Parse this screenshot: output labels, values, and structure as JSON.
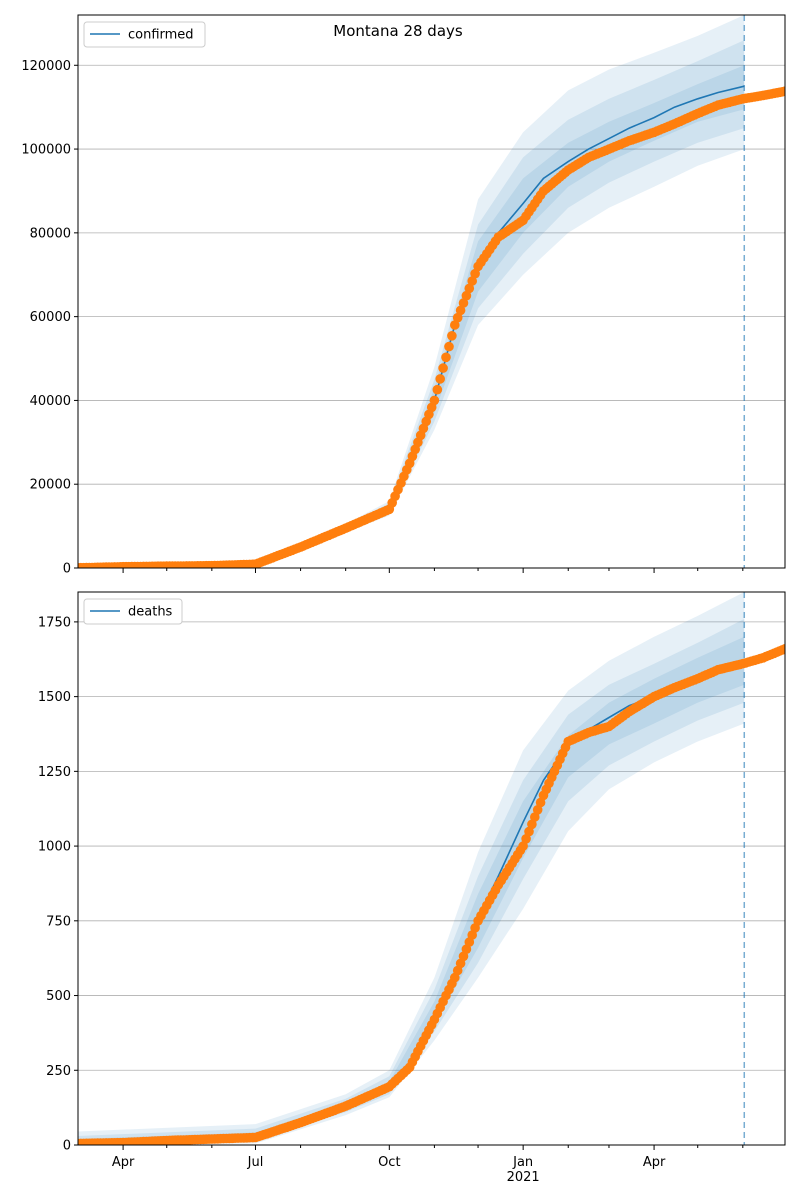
{
  "chart_data": [
    {
      "type": "line",
      "title": "Montana 28 days",
      "xlabel": "",
      "ylabel": "",
      "ylim": [
        0,
        132000
      ],
      "xlim": [
        "2020-03-01",
        "2021-06-30"
      ],
      "yticks": [
        0,
        20000,
        40000,
        60000,
        80000,
        100000,
        120000
      ],
      "ytick_labels": [
        "0",
        "20000",
        "40000",
        "60000",
        "80000",
        "100000",
        "120000"
      ],
      "grid": "y",
      "legend_position": "top-left",
      "forecast_start": "2021-06-02",
      "series": [
        {
          "name": "confirmed",
          "type": "line",
          "color": "#1f77b4",
          "x": [
            "2020-03-01",
            "2020-04-01",
            "2020-05-01",
            "2020-06-01",
            "2020-07-01",
            "2020-08-01",
            "2020-09-01",
            "2020-10-01",
            "2020-10-15",
            "2020-11-01",
            "2020-11-15",
            "2020-12-01",
            "2020-12-15",
            "2021-01-01",
            "2021-01-15",
            "2021-02-01",
            "2021-02-15",
            "2021-03-01",
            "2021-03-15",
            "2021-04-01",
            "2021-04-15",
            "2021-05-01",
            "2021-05-15",
            "2021-06-02"
          ],
          "y": [
            50,
            300,
            450,
            550,
            900,
            5000,
            9500,
            14000,
            25000,
            40000,
            58000,
            72000,
            80000,
            87000,
            93000,
            97000,
            100000,
            102500,
            105000,
            107500,
            110000,
            112000,
            113500,
            115000
          ]
        },
        {
          "name": "",
          "type": "scatter",
          "color": "#ff7f0e",
          "x": [
            "2020-03-01",
            "2020-04-01",
            "2020-05-01",
            "2020-06-01",
            "2020-07-01",
            "2020-08-01",
            "2020-09-01",
            "2020-10-01",
            "2020-10-15",
            "2020-11-01",
            "2020-11-15",
            "2020-12-01",
            "2020-12-15",
            "2021-01-01",
            "2021-01-15",
            "2021-02-01",
            "2021-02-15",
            "2021-03-01",
            "2021-03-15",
            "2021-04-01",
            "2021-04-15",
            "2021-05-01",
            "2021-05-15",
            "2021-06-01",
            "2021-06-15",
            "2021-06-30"
          ],
          "y": [
            50,
            300,
            450,
            550,
            900,
            5000,
            9500,
            14000,
            25000,
            40000,
            58000,
            72000,
            79000,
            83000,
            90000,
            95000,
            98000,
            100000,
            102000,
            104000,
            106000,
            108500,
            110500,
            112000,
            112800,
            113800
          ]
        }
      ],
      "bands": [
        {
          "x": [
            "2020-03-01",
            "2020-07-01",
            "2020-09-01",
            "2020-10-01",
            "2020-11-01",
            "2020-12-01",
            "2021-01-01",
            "2021-02-01",
            "2021-03-01",
            "2021-04-01",
            "2021-05-01",
            "2021-06-02"
          ],
          "lower": [
            0,
            700,
            8500,
            12500,
            33000,
            58000,
            70000,
            80000,
            86000,
            91000,
            96000,
            100000
          ],
          "upper": [
            100,
            1200,
            10500,
            16000,
            48000,
            88000,
            104000,
            114000,
            119000,
            123000,
            127000,
            132000
          ]
        },
        {
          "x": [
            "2020-03-01",
            "2020-07-01",
            "2020-09-01",
            "2020-10-01",
            "2020-11-01",
            "2020-12-01",
            "2021-01-01",
            "2021-02-01",
            "2021-03-01",
            "2021-04-01",
            "2021-05-01",
            "2021-06-02"
          ],
          "lower": [
            0,
            750,
            8800,
            13000,
            35000,
            62000,
            75000,
            86000,
            92000,
            97000,
            101500,
            105000
          ],
          "upper": [
            90,
            1100,
            10200,
            15500,
            45000,
            82000,
            98000,
            107000,
            112000,
            116500,
            121000,
            126000
          ]
        },
        {
          "x": [
            "2020-03-01",
            "2020-07-01",
            "2020-09-01",
            "2020-10-01",
            "2020-11-01",
            "2020-12-01",
            "2021-01-01",
            "2021-02-01",
            "2021-03-01",
            "2021-04-01",
            "2021-05-01",
            "2021-06-02"
          ],
          "lower": [
            20,
            800,
            9100,
            13500,
            37000,
            66000,
            80000,
            91000,
            97000,
            102000,
            106500,
            109500
          ],
          "upper": [
            80,
            1000,
            9900,
            14700,
            43000,
            78000,
            93000,
            101500,
            106500,
            111000,
            115500,
            120000
          ]
        }
      ]
    },
    {
      "type": "line",
      "title": "",
      "xlabel": "",
      "ylabel": "",
      "ylim": [
        0,
        1850
      ],
      "xlim": [
        "2020-03-01",
        "2021-06-30"
      ],
      "yticks": [
        0,
        250,
        500,
        750,
        1000,
        1250,
        1500,
        1750
      ],
      "ytick_labels": [
        "0",
        "250",
        "500",
        "750",
        "1000",
        "1250",
        "1500",
        "1750"
      ],
      "xtick_labels": [
        "Apr",
        "Jul",
        "Oct",
        "Jan\n2021",
        "Apr"
      ],
      "xticks": [
        "2020-04-01",
        "2020-07-01",
        "2020-10-01",
        "2021-01-01",
        "2021-04-01"
      ],
      "grid": "y",
      "legend_position": "top-left",
      "forecast_start": "2021-06-02",
      "series": [
        {
          "name": "deaths",
          "type": "line",
          "color": "#1f77b4",
          "x": [
            "2020-03-01",
            "2020-04-01",
            "2020-05-01",
            "2020-06-01",
            "2020-07-01",
            "2020-08-01",
            "2020-09-01",
            "2020-10-01",
            "2020-10-15",
            "2020-11-01",
            "2020-11-15",
            "2020-12-01",
            "2020-12-15",
            "2021-01-01",
            "2021-01-15",
            "2021-02-01",
            "2021-02-15",
            "2021-03-01",
            "2021-03-15",
            "2021-04-01",
            "2021-04-15",
            "2021-05-01",
            "2021-05-15",
            "2021-06-02",
            "2021-06-30"
          ],
          "y": [
            5,
            8,
            15,
            20,
            25,
            75,
            130,
            195,
            270,
            430,
            570,
            760,
            900,
            1080,
            1220,
            1340,
            1390,
            1430,
            1470,
            1500,
            1530,
            1560,
            1585,
            1610,
            1650
          ]
        },
        {
          "name": "",
          "type": "scatter",
          "color": "#ff7f0e",
          "x": [
            "2020-03-01",
            "2020-04-01",
            "2020-05-01",
            "2020-06-01",
            "2020-07-01",
            "2020-08-01",
            "2020-09-01",
            "2020-10-01",
            "2020-10-15",
            "2020-11-01",
            "2020-11-15",
            "2020-12-01",
            "2020-12-15",
            "2021-01-01",
            "2021-01-15",
            "2021-02-01",
            "2021-02-15",
            "2021-03-01",
            "2021-03-15",
            "2021-04-01",
            "2021-04-15",
            "2021-05-01",
            "2021-05-15",
            "2021-06-01",
            "2021-06-15",
            "2021-06-30"
          ],
          "y": [
            5,
            8,
            15,
            20,
            25,
            75,
            130,
            195,
            260,
            420,
            560,
            750,
            870,
            1000,
            1170,
            1350,
            1380,
            1400,
            1450,
            1500,
            1530,
            1560,
            1590,
            1610,
            1630,
            1660
          ]
        }
      ],
      "bands": [
        {
          "x": [
            "2020-03-01",
            "2020-07-01",
            "2020-09-01",
            "2020-10-01",
            "2020-11-01",
            "2020-12-01",
            "2021-01-01",
            "2021-02-01",
            "2021-03-01",
            "2021-04-01",
            "2021-05-01",
            "2021-06-02"
          ],
          "lower": [
            0,
            5,
            100,
            160,
            350,
            560,
            790,
            1050,
            1190,
            1280,
            1350,
            1410
          ],
          "upper": [
            45,
            70,
            170,
            250,
            560,
            980,
            1320,
            1520,
            1620,
            1700,
            1770,
            1850
          ]
        },
        {
          "x": [
            "2020-03-01",
            "2020-07-01",
            "2020-09-01",
            "2020-10-01",
            "2020-11-01",
            "2020-12-01",
            "2021-01-01",
            "2021-02-01",
            "2021-03-01",
            "2021-04-01",
            "2021-05-01",
            "2021-06-02"
          ],
          "lower": [
            0,
            12,
            110,
            170,
            380,
            610,
            890,
            1150,
            1270,
            1350,
            1420,
            1480
          ],
          "upper": [
            30,
            55,
            155,
            230,
            520,
            900,
            1220,
            1440,
            1540,
            1610,
            1680,
            1760
          ]
        },
        {
          "x": [
            "2020-03-01",
            "2020-07-01",
            "2020-09-01",
            "2020-10-01",
            "2020-11-01",
            "2020-12-01",
            "2021-01-01",
            "2021-02-01",
            "2021-03-01",
            "2021-04-01",
            "2021-05-01",
            "2021-06-02"
          ],
          "lower": [
            0,
            18,
            118,
            180,
            405,
            660,
            960,
            1230,
            1340,
            1410,
            1480,
            1540
          ],
          "upper": [
            20,
            42,
            142,
            212,
            480,
            840,
            1150,
            1370,
            1480,
            1560,
            1630,
            1700
          ]
        }
      ]
    }
  ]
}
